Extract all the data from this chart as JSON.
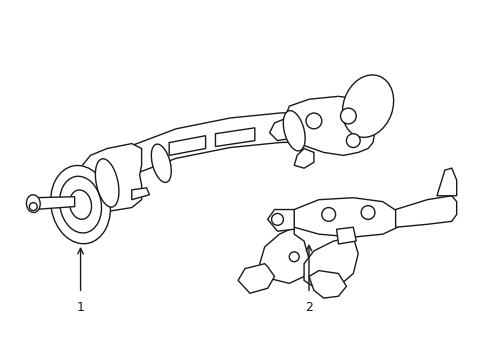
{
  "background_color": "#ffffff",
  "line_color": "#1a1a1a",
  "line_width": 1.0,
  "figure_width": 4.89,
  "figure_height": 3.6,
  "dpi": 100,
  "label1": "1",
  "label2": "2"
}
